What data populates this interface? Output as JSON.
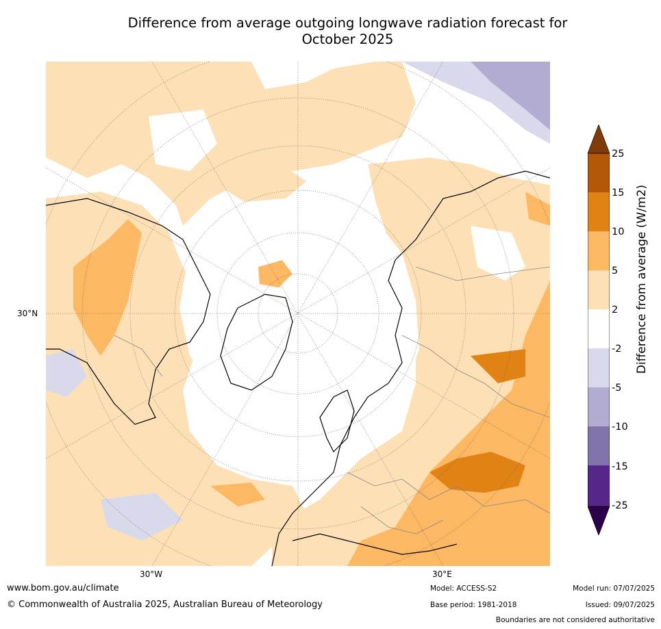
{
  "title_line1": "Difference from average outgoing longwave radiation forecast for",
  "title_line2": "October 2025",
  "map": {
    "projection": "north-polar-stereographic",
    "lat_label": "30°N",
    "lon_labels": [
      "30°W",
      "30°E"
    ]
  },
  "colorbar": {
    "title": "Difference from average (W/m2)",
    "ticks": [
      "25",
      "15",
      "10",
      "5",
      "2",
      "-2",
      "-5",
      "-10",
      "-15",
      "-25"
    ],
    "colors": {
      "gt25": "#7f3b08",
      "15_25": "#b35806",
      "10_15": "#e08214",
      "5_10": "#fdb863",
      "2_5": "#fee0b6",
      "m2_2": "#ffffff",
      "m5_m2": "#d8daeb",
      "m10_m5": "#b2abd2",
      "m15_m10": "#8073ac",
      "m25_m15": "#542788",
      "lt_m25": "#2d004b"
    }
  },
  "footer": {
    "url": "www.bom.gov.au/climate",
    "copyright": "© Commonwealth of Australia 2025, Australian Bureau of Meteorology",
    "model": "Model: ACCESS-S2",
    "base_period": "Base period: 1981-2018",
    "model_run": "Model run: 07/07/2025",
    "issued": "Issued: 09/07/2025",
    "disclaimer": "Boundaries are not considered authoritative"
  }
}
